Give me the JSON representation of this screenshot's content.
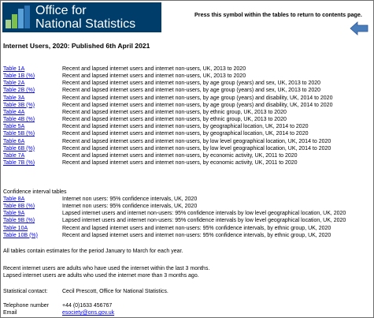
{
  "header": {
    "logo_line1": "Office for",
    "logo_line2": "National Statistics",
    "press_text": "Press this symbol within the tables to return to contents page."
  },
  "title": "Internet Users, 2020: Published 6th April 2021",
  "tables": [
    {
      "link": "Table 1A",
      "desc": "Recent and lapsed internet users and internet non-users, UK, 2013 to 2020"
    },
    {
      "link": "Table 1B (%)",
      "desc": "Recent and lapsed internet users and internet non-users, UK, 2013 to 2020"
    },
    {
      "link": "Table 2A",
      "desc": "Recent and lapsed internet users and internet non-users, by age group (years) and sex, UK, 2013 to 2020"
    },
    {
      "link": "Table 2B (%)",
      "desc": "Recent and lapsed internet users and internet non-users, by age group (years) and sex, UK, 2013 to 2020"
    },
    {
      "link": "Table 3A",
      "desc": "Recent and lapsed internet users and internet non-users, by age group (years) and disability, UK, 2014 to 2020"
    },
    {
      "link": "Table 3B (%)",
      "desc": "Recent and lapsed internet users and internet non-users, by age group (years) and disability, UK, 2014 to 2020"
    },
    {
      "link": "Table 4A",
      "desc": "Recent and lapsed internet users and internet non-users, by ethnic group, UK, 2013 to 2020"
    },
    {
      "link": "Table 4B (%)",
      "desc": "Recent and lapsed internet users and internet non-users, by ethnic group, UK, 2013 to 2020"
    },
    {
      "link": "Table 5A",
      "desc": "Recent and lapsed internet users and internet non-users, by geographical location, UK, 2014 to 2020"
    },
    {
      "link": "Table 5B (%)",
      "desc": "Recent and lapsed internet users and internet non-users, by geographical location, UK, 2014 to 2020"
    },
    {
      "link": "Table 6A",
      "desc": "Recent and lapsed internet users and internet non-users, by low level geographical location, UK, 2014 to 2020"
    },
    {
      "link": "Table 6B (%)",
      "desc": "Recent and lapsed internet users and internet non-users, by low level geographical location, UK, 2014 to 2020"
    },
    {
      "link": "Table 7A",
      "desc": "Recent and lapsed internet users and internet non-users, by economic activity, UK, 2011 to 2020"
    },
    {
      "link": "Table 7B (%)",
      "desc": "Recent and lapsed internet users and internet non-users, by economic activity, UK, 2011 to 2020"
    }
  ],
  "ci_heading": "Confidence interval tables",
  "ci_tables": [
    {
      "link": "Table 8A",
      "desc": "Internet non users: 95% confidence intervals, UK, 2020"
    },
    {
      "link": "Table 8B (%)",
      "desc": "Internet non users: 95% confidence intervals, UK, 2020"
    },
    {
      "link": "Table 9A",
      "desc": "Lapsed internet users and internet non-users: 95% confidence intervals by low level geographical location, UK, 2020"
    },
    {
      "link": "Table 9B (%)",
      "desc": "Lapsed internet users and internet non-users: 95% confidence intervals by low level geographical location, UK, 2020"
    },
    {
      "link": "Table 10A",
      "desc": "Recent and lapsed internet users and internet non-users: 95% confidence intervals, by ethnic group, UK, 2020"
    },
    {
      "link": "Table 10B (%)",
      "desc": "Recent and lapsed internet users and internet non-users: 95% confidence intervals, by ethnic group, UK, 2020"
    }
  ],
  "notes": {
    "period": "All tables contain estimates for the period January to March for each year.",
    "recent": "Recent internet users are adults who have used the internet within the last 3 months.",
    "lapsed": "Lapsed internet users are adults who used the internet more than 3 months ago."
  },
  "contact": {
    "label": "Statistical contact:",
    "value": "Cecil Prescott, Office for National Statistics.",
    "phone_label": "Telephone number",
    "phone_value": "+44 (0)1633 456767",
    "email_label": "Email",
    "email_value": "esociety@ons.gov.uk"
  },
  "colors": {
    "logo_bg": "#003d6b",
    "link": "#0000ee",
    "arrow": "#4a7ebb"
  },
  "icons": {
    "logo": "ons-logo-icon",
    "back": "back-arrow-icon"
  }
}
